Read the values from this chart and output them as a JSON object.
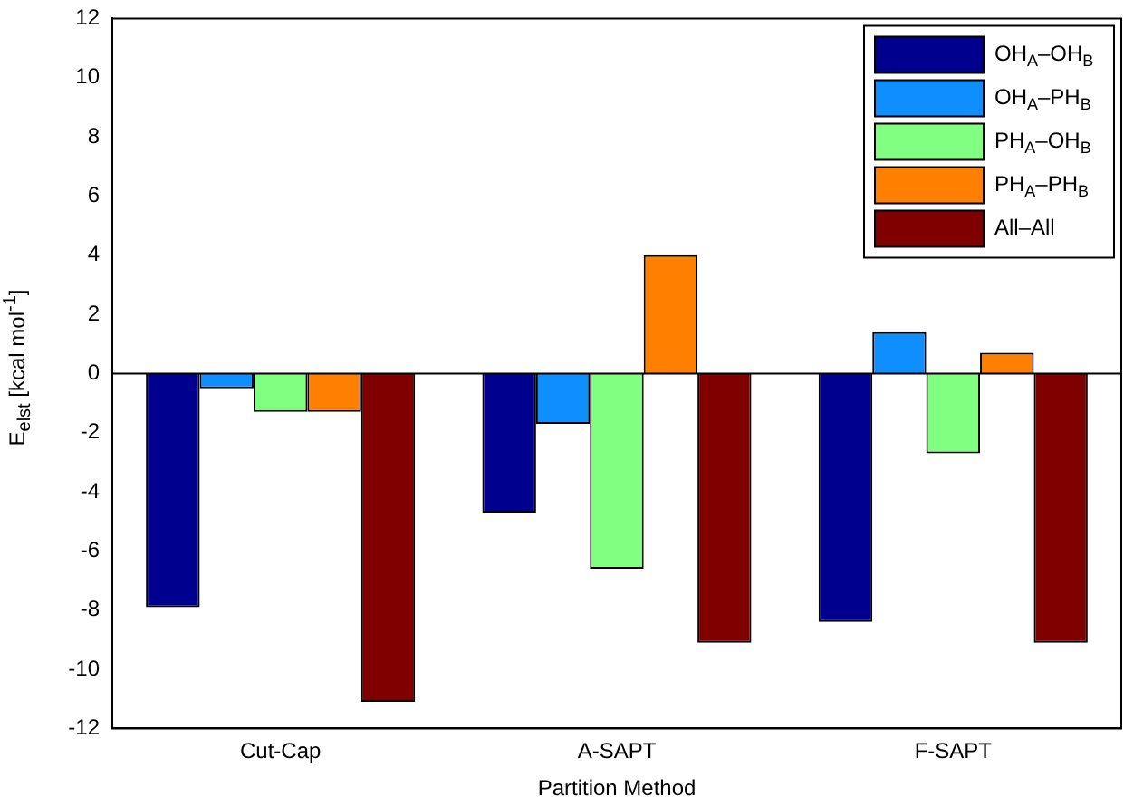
{
  "chart_data": {
    "type": "bar",
    "xlabel": "Partition Method",
    "ylabel": "E$_{elst}$ [kcal mol$^{-1}$]",
    "categories": [
      "Cut-Cap",
      "A-SAPT",
      "F-SAPT"
    ],
    "series": [
      {
        "name": "OH$_{A}$–OH$_{B}$",
        "color": "#00008f",
        "values": [
          -7.9,
          -4.7,
          -8.4
        ]
      },
      {
        "name": "OH$_{A}$–PH$_{B}$",
        "color": "#0f8fff",
        "values": [
          -0.5,
          -1.7,
          1.4
        ]
      },
      {
        "name": "PH$_{A}$–OH$_{B}$",
        "color": "#80ff80",
        "values": [
          -1.3,
          -6.6,
          -2.7
        ]
      },
      {
        "name": "PH$_{A}$–PH$_{B}$",
        "color": "#ff8000",
        "values": [
          -1.3,
          4.0,
          0.7
        ]
      },
      {
        "name": "All–All",
        "color": "#800000",
        "values": [
          -11.1,
          -9.1,
          -9.1
        ]
      }
    ],
    "ylim": [
      -12,
      12
    ],
    "yticks": [
      -12,
      -10,
      -8,
      -6,
      -4,
      -2,
      0,
      2,
      4,
      6,
      8,
      10,
      12
    ],
    "grid": false,
    "legend": "top right",
    "ref_lines": [
      {
        "axis": "y",
        "value": 0,
        "color": "#000000"
      }
    ]
  }
}
